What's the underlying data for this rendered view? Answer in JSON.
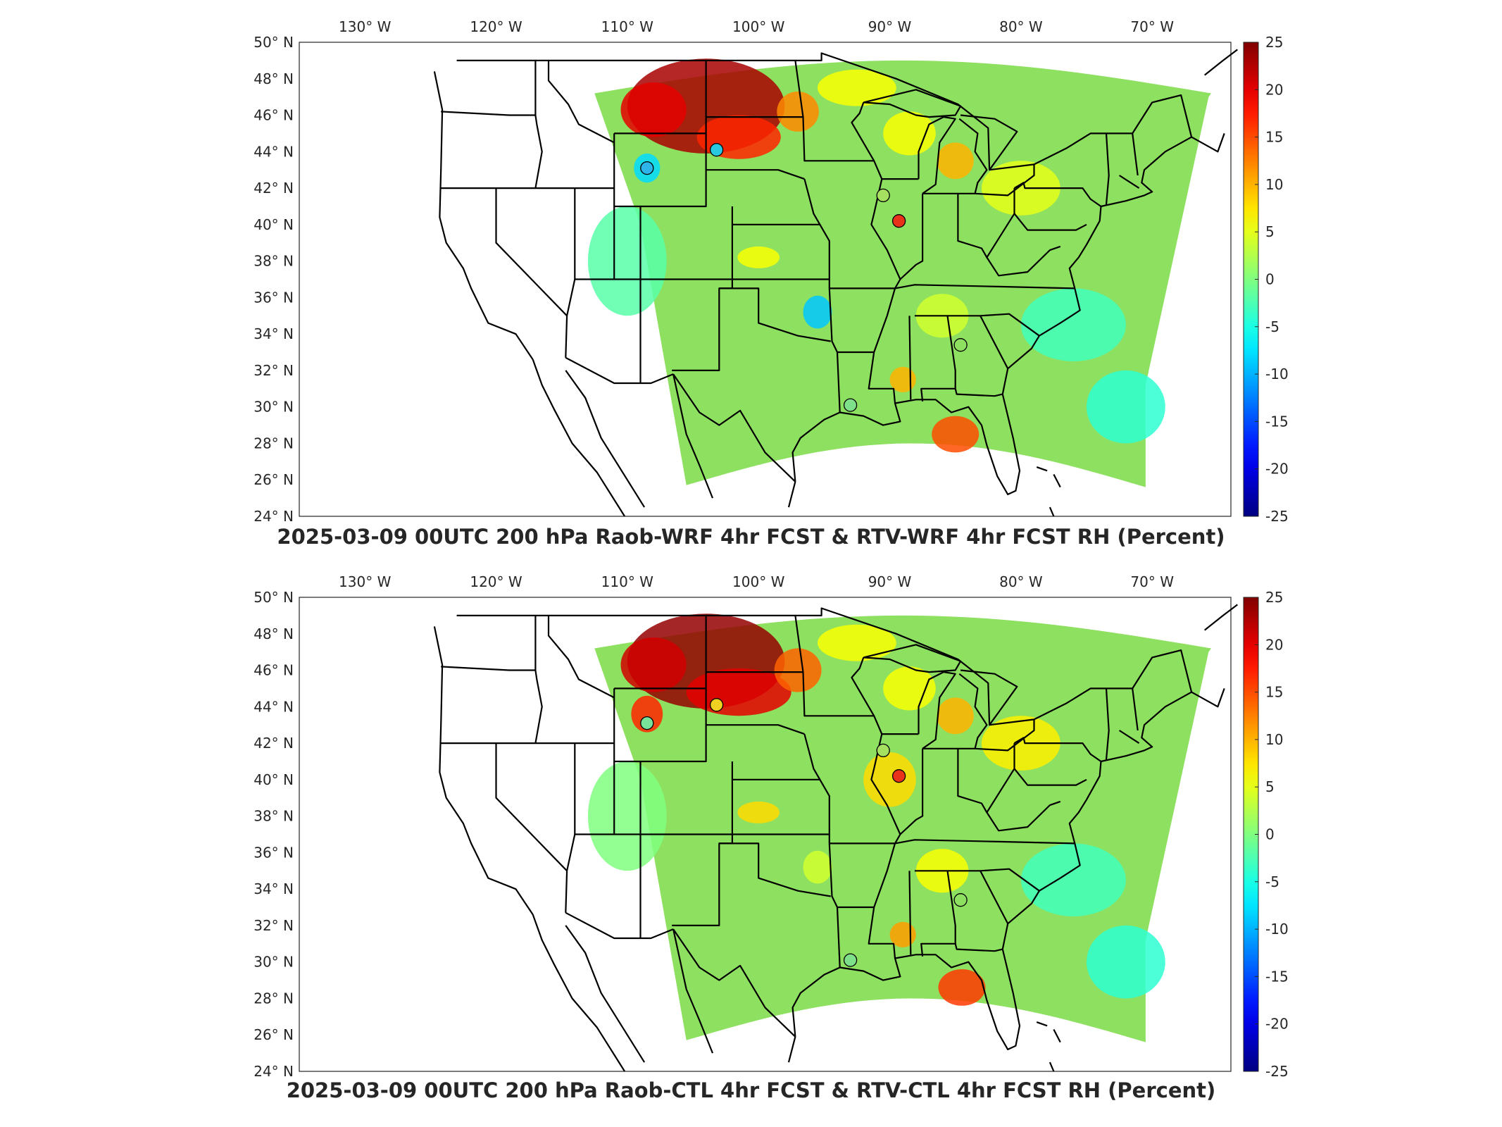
{
  "map": {
    "longitude_ticks": [
      "130° W",
      "120° W",
      "110° W",
      "100° W",
      "90° W",
      "80° W",
      "70° W"
    ],
    "latitude_ticks": [
      "50° N",
      "48° N",
      "46° N",
      "44° N",
      "42° N",
      "40° N",
      "38° N",
      "36° N",
      "34° N",
      "32° N",
      "30° N",
      "28° N",
      "26° N",
      "24° N"
    ],
    "colorbar": {
      "min": -25,
      "max": 25,
      "ticks": [
        "25",
        "20",
        "15",
        "10",
        "5",
        "0",
        "-5",
        "-10",
        "-15",
        "-20",
        "-25"
      ],
      "colormap": "jet"
    }
  },
  "panels": [
    {
      "title": "2025-03-09 00UTC 200 hPa Raob-WRF 4hr FCST & RTV-WRF 4hr FCST RH (Percent)",
      "stations": [
        {
          "lon": -108.5,
          "lat": 43.1,
          "value": -4,
          "color": "#2db4e8"
        },
        {
          "lon": -103.2,
          "lat": 44.1,
          "value": -6,
          "color": "#28c8e0"
        },
        {
          "lon": -89.3,
          "lat": 40.2,
          "value": 22,
          "color": "#e8321a"
        },
        {
          "lon": -84.6,
          "lat": 33.4,
          "value": 0,
          "color": "#8ee060"
        },
        {
          "lon": -93.0,
          "lat": 30.1,
          "value": -2,
          "color": "#7ee08a"
        },
        {
          "lon": -90.5,
          "lat": 41.6,
          "value": 0,
          "color": "#a6e060"
        }
      ]
    },
    {
      "title": "2025-03-09 00UTC 200 hPa Raob-CTL 4hr FCST & RTV-CTL 4hr FCST RH (Percent)",
      "stations": [
        {
          "lon": -108.5,
          "lat": 43.1,
          "value": -1,
          "color": "#78e29a"
        },
        {
          "lon": -103.2,
          "lat": 44.1,
          "value": 7,
          "color": "#f0d020"
        },
        {
          "lon": -89.3,
          "lat": 40.2,
          "value": 22,
          "color": "#e8321a"
        },
        {
          "lon": -84.6,
          "lat": 33.4,
          "value": 0,
          "color": "#8ee060"
        },
        {
          "lon": -93.0,
          "lat": 30.1,
          "value": -2,
          "color": "#7ee08a"
        },
        {
          "lon": -90.5,
          "lat": 41.6,
          "value": 0,
          "color": "#a6e060"
        }
      ]
    }
  ]
}
